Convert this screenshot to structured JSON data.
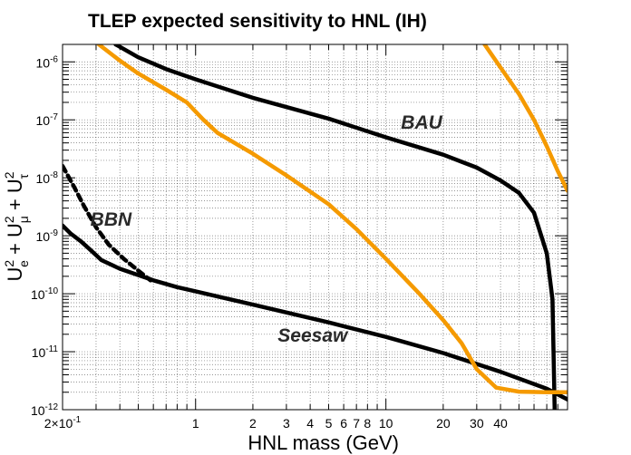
{
  "chart_data": {
    "type": "line",
    "title": "TLEP expected sensitivity to HNL (IH)",
    "xlabel": "HNL mass (GeV)",
    "ylabel_parts": {
      "u": "U",
      "sub_e": "e",
      "sub_mu": "μ",
      "sub_tau": "τ",
      "sup": "2",
      "plus": "+"
    },
    "xscale": "log",
    "yscale": "log",
    "xlim": [
      0.2,
      90
    ],
    "ylim": [
      1e-12,
      2e-06
    ],
    "grid": true,
    "x_tick_labels": [
      {
        "value": 0.2,
        "label": "2×10",
        "exp": "-1"
      },
      {
        "value": 1,
        "label": "1"
      },
      {
        "value": 2,
        "label": "2"
      },
      {
        "value": 3,
        "label": "3"
      },
      {
        "value": 4,
        "label": "4"
      },
      {
        "value": 5,
        "label": "5"
      },
      {
        "value": 6,
        "label": "6"
      },
      {
        "value": 7,
        "label": "7"
      },
      {
        "value": 8,
        "label": "8"
      },
      {
        "value": 10,
        "label": "10"
      },
      {
        "value": 20,
        "label": "20"
      },
      {
        "value": 30,
        "label": "30"
      },
      {
        "value": 40,
        "label": "40"
      }
    ],
    "y_tick_labels": [
      {
        "value": 1e-12,
        "label": "10",
        "exp": "-12"
      },
      {
        "value": 1e-11,
        "label": "10",
        "exp": "-11"
      },
      {
        "value": 1e-10,
        "label": "10",
        "exp": "-10"
      },
      {
        "value": 1e-09,
        "label": "10",
        "exp": "-9"
      },
      {
        "value": 1e-08,
        "label": "10",
        "exp": "-8"
      },
      {
        "value": 1e-07,
        "label": "10",
        "exp": "-7"
      },
      {
        "value": 1e-06,
        "label": "10",
        "exp": "-6"
      }
    ],
    "annotations": [
      {
        "text": "BAU",
        "x": 12,
        "y": 7e-08
      },
      {
        "text": "BBN",
        "x": 0.28,
        "y": 1.5e-09
      },
      {
        "text": "Seesaw",
        "x": 2.7,
        "y": 1.5e-11
      }
    ],
    "series": [
      {
        "color": "#000000",
        "dashed": false,
        "points": [
          [
            0.38,
            2e-06
          ],
          [
            0.5,
            1.2e-06
          ],
          [
            0.7,
            7.5e-07
          ],
          [
            1,
            5e-07
          ],
          [
            2,
            2.4e-07
          ],
          [
            5,
            1.05e-07
          ],
          [
            10,
            5e-08
          ],
          [
            20,
            2.5e-08
          ],
          [
            30,
            1.5e-08
          ],
          [
            40,
            9e-09
          ],
          [
            50,
            5.5e-09
          ],
          [
            60,
            2.5e-09
          ],
          [
            70,
            5e-10
          ],
          [
            75,
            8e-11
          ],
          [
            77,
            1e-12
          ]
        ]
      },
      {
        "color": "#000000",
        "dashed": false,
        "points": [
          [
            0.2,
            1.5e-09
          ],
          [
            0.22,
            1.1e-09
          ],
          [
            0.25,
            8e-10
          ],
          [
            0.28,
            5.7e-10
          ],
          [
            0.32,
            3.8e-10
          ],
          [
            0.4,
            2.7e-10
          ],
          [
            0.5,
            2.1e-10
          ],
          [
            0.6,
            1.7e-10
          ],
          [
            0.8,
            1.3e-10
          ],
          [
            1,
            1.1e-10
          ],
          [
            2,
            6.5e-11
          ],
          [
            5,
            3.2e-11
          ],
          [
            10,
            1.8e-11
          ],
          [
            20,
            9.5e-12
          ],
          [
            40,
            4.5e-12
          ],
          [
            70,
            2.3e-12
          ],
          [
            90,
            1.5e-12
          ]
        ]
      },
      {
        "color": "#000000",
        "dashed": true,
        "points": [
          [
            0.2,
            1.6e-08
          ],
          [
            0.21,
            1.2e-08
          ],
          [
            0.23,
            7e-09
          ],
          [
            0.26,
            3.2e-09
          ],
          [
            0.3,
            1.4e-09
          ],
          [
            0.35,
            7e-10
          ],
          [
            0.42,
            4e-10
          ],
          [
            0.5,
            2.5e-10
          ],
          [
            0.58,
            1.7e-10
          ]
        ]
      },
      {
        "color": "#f59a00",
        "dashed": false,
        "points": [
          [
            0.31,
            2e-06
          ],
          [
            0.4,
            1.05e-06
          ],
          [
            0.5,
            6.3e-07
          ],
          [
            0.7,
            3.3e-07
          ],
          [
            0.9,
            2e-07
          ],
          [
            1.1,
            1e-07
          ],
          [
            1.3,
            6e-08
          ],
          [
            2,
            2.6e-08
          ],
          [
            3,
            1.1e-08
          ],
          [
            5,
            3.5e-09
          ],
          [
            7,
            1.3e-09
          ],
          [
            10,
            4e-10
          ],
          [
            15,
            1e-10
          ],
          [
            20,
            3.5e-11
          ],
          [
            25,
            1.4e-11
          ],
          [
            30,
            5e-12
          ],
          [
            38,
            2.4e-12
          ],
          [
            50,
            2.05e-12
          ],
          [
            70,
            2e-12
          ],
          [
            90,
            2e-12
          ]
        ]
      },
      {
        "color": "#f59a00",
        "dashed": false,
        "points": [
          [
            33,
            2e-06
          ],
          [
            40,
            8e-07
          ],
          [
            50,
            2.8e-07
          ],
          [
            60,
            1e-07
          ],
          [
            70,
            3.5e-08
          ],
          [
            80,
            1.3e-08
          ],
          [
            90,
            6e-09
          ]
        ]
      }
    ]
  }
}
